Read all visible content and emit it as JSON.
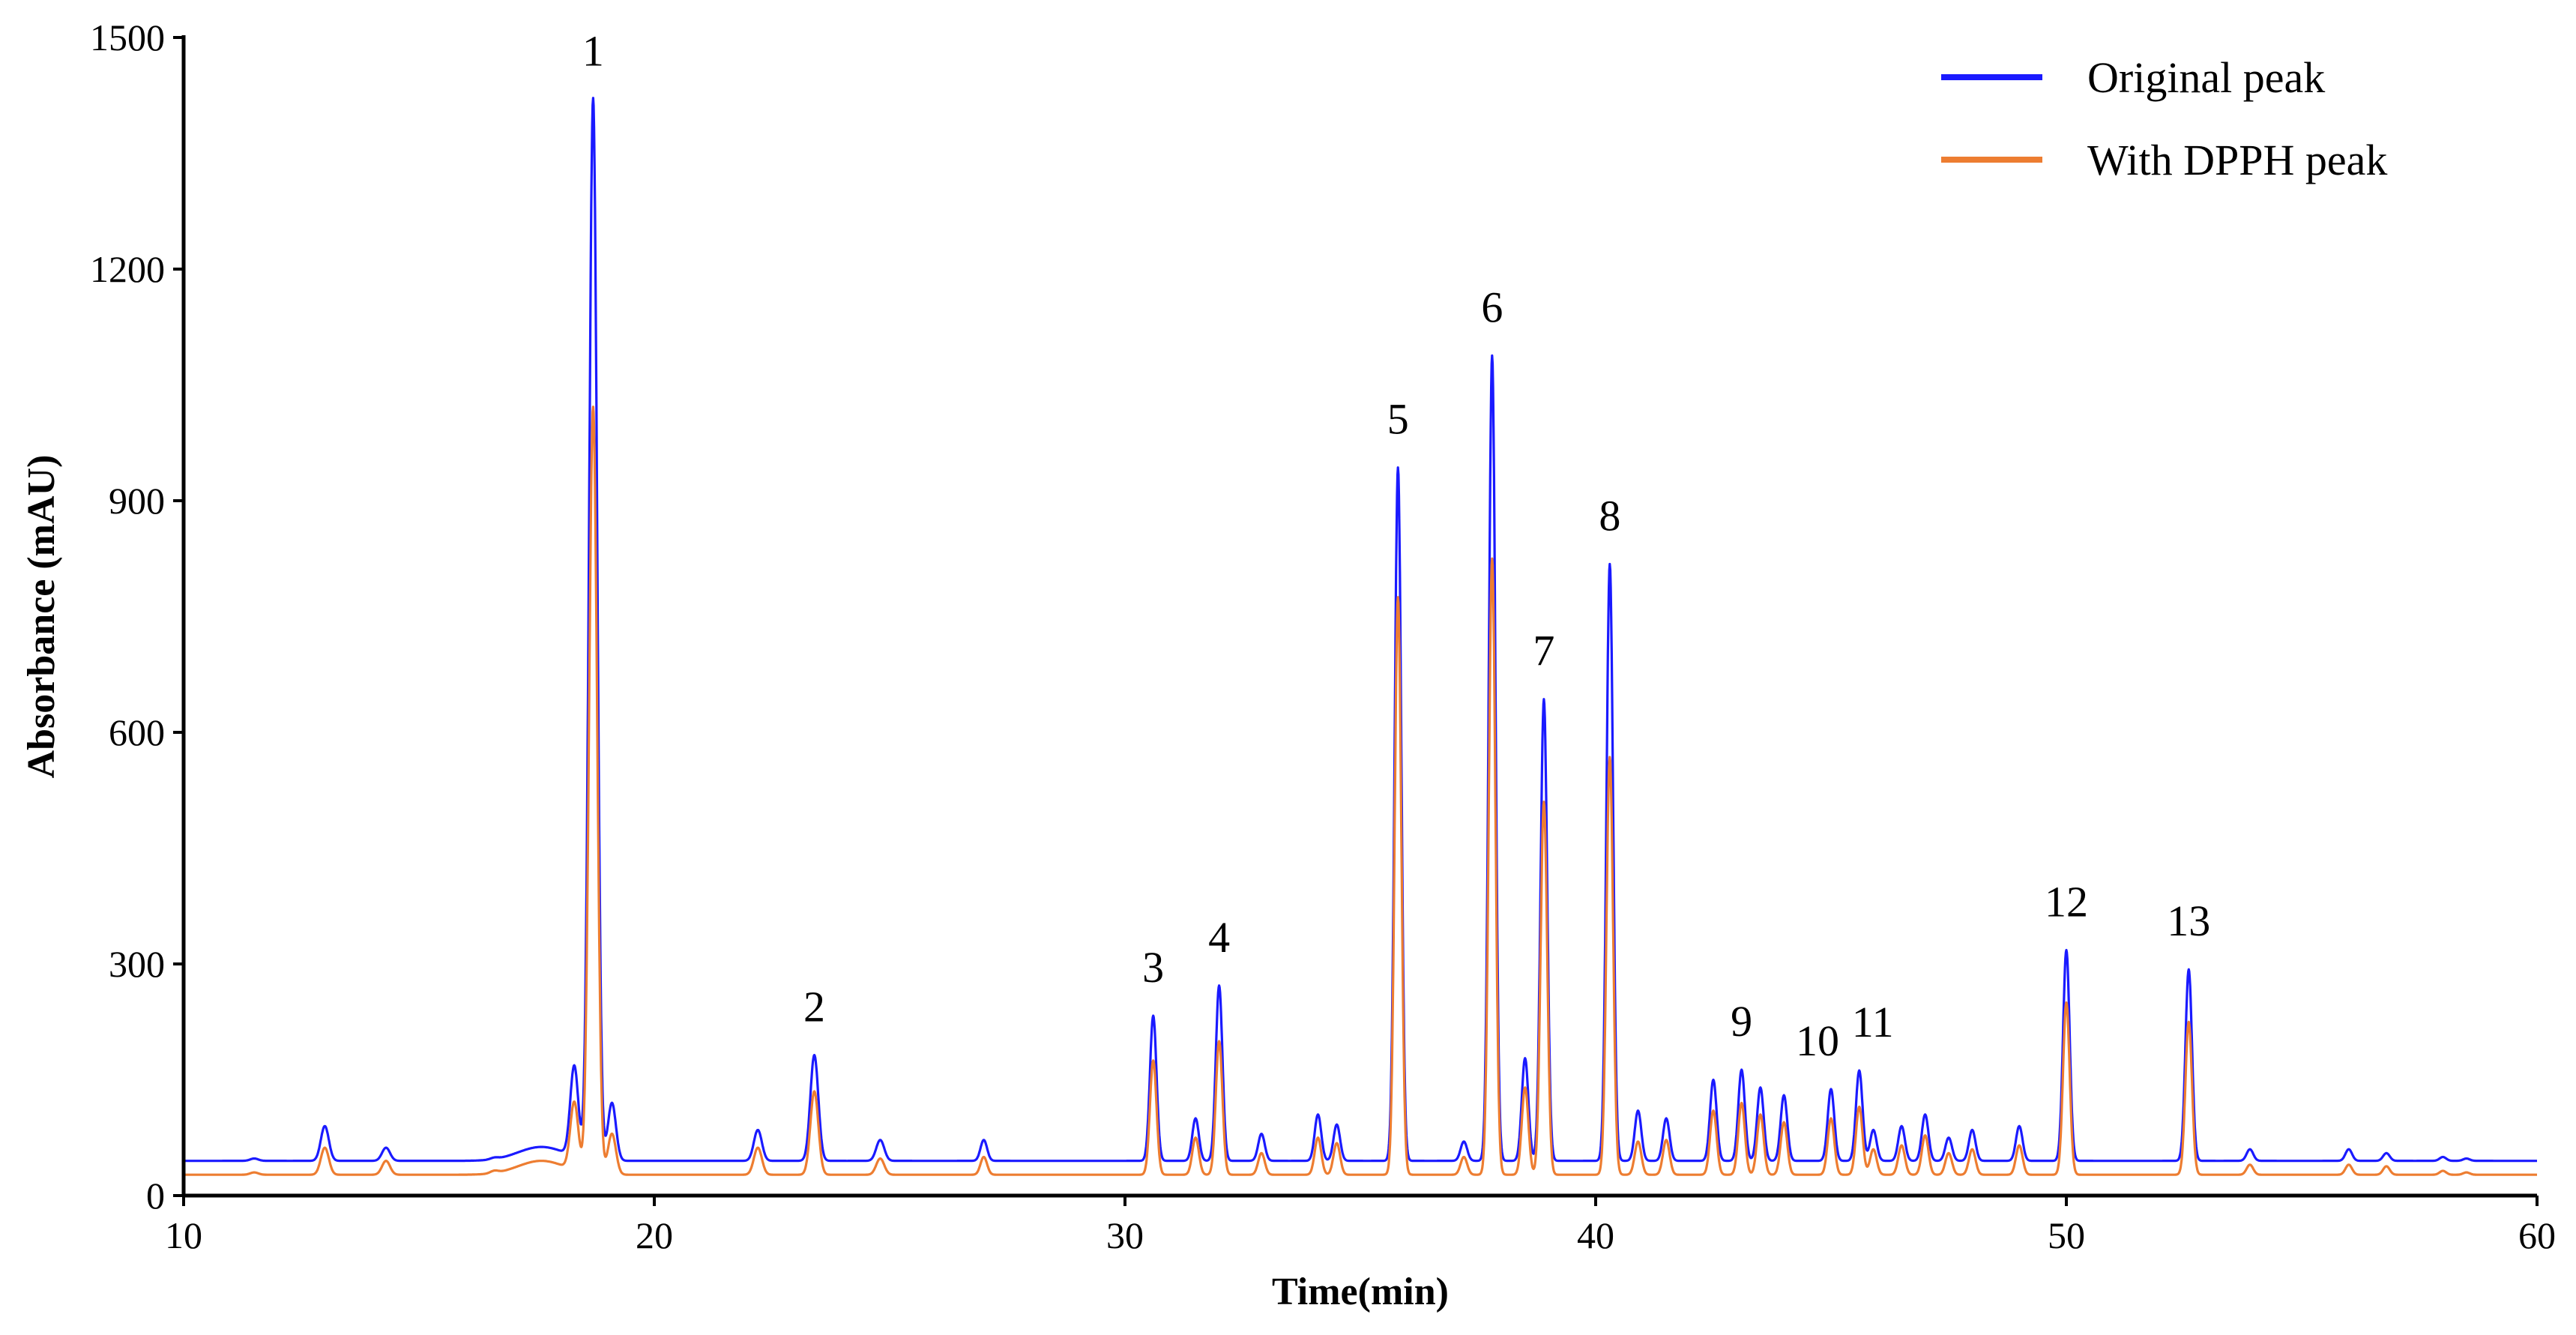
{
  "chart_data": {
    "type": "line",
    "xlabel": "Time(min)",
    "ylabel": "Absorbance (mAU)",
    "xlim": [
      10,
      60
    ],
    "ylim": [
      0,
      1500
    ],
    "x_ticks": [
      10,
      20,
      30,
      40,
      50,
      60
    ],
    "y_ticks": [
      0,
      300,
      600,
      900,
      1200,
      1500
    ],
    "legend": {
      "position": "top-right",
      "entries": [
        {
          "name": "Original peak",
          "color": "#1a1aff"
        },
        {
          "name": "With DPPH peak",
          "color": "#ed7d31"
        }
      ]
    },
    "baselines": {
      "Original peak": 45,
      "With DPPH peak": 27
    },
    "peaks": [
      {
        "label": "1",
        "time": 18.7,
        "original": 1420,
        "dpph": 1020
      },
      {
        "label": "2",
        "time": 23.4,
        "original": 182,
        "dpph": 135
      },
      {
        "label": "3",
        "time": 30.6,
        "original": 233,
        "dpph": 175
      },
      {
        "label": "4",
        "time": 32.0,
        "original": 272,
        "dpph": 200
      },
      {
        "label": "5",
        "time": 35.8,
        "original": 943,
        "dpph": 775
      },
      {
        "label": "6",
        "time": 37.8,
        "original": 1088,
        "dpph": 825
      },
      {
        "label": "7",
        "time": 38.9,
        "original": 643,
        "dpph": 510
      },
      {
        "label": "8",
        "time": 40.3,
        "original": 818,
        "dpph": 568
      },
      {
        "label": "9",
        "time": 43.1,
        "original": 163,
        "dpph": 120
      },
      {
        "label": "10",
        "time": 45.0,
        "original": 138,
        "dpph": 100
      },
      {
        "label": "11",
        "time": 45.6,
        "original": 162,
        "dpph": 115
      },
      {
        "label": "12",
        "time": 50.0,
        "original": 318,
        "dpph": 250
      },
      {
        "label": "13",
        "time": 52.6,
        "original": 293,
        "dpph": 225
      }
    ],
    "minor_peaks": [
      {
        "time": 11.5,
        "original": 48,
        "dpph": 30
      },
      {
        "time": 13.0,
        "original": 90,
        "dpph": 62
      },
      {
        "time": 14.3,
        "original": 62,
        "dpph": 45
      },
      {
        "time": 16.6,
        "original": 47,
        "dpph": 30
      },
      {
        "time": 18.3,
        "original": 162,
        "dpph": 115
      },
      {
        "time": 19.1,
        "original": 120,
        "dpph": 80
      },
      {
        "time": 22.2,
        "original": 85,
        "dpph": 62
      },
      {
        "time": 24.8,
        "original": 72,
        "dpph": 48
      },
      {
        "time": 27.0,
        "original": 72,
        "dpph": 50
      },
      {
        "time": 31.5,
        "original": 100,
        "dpph": 75
      },
      {
        "time": 32.9,
        "original": 80,
        "dpph": 55
      },
      {
        "time": 34.1,
        "original": 105,
        "dpph": 75
      },
      {
        "time": 34.5,
        "original": 92,
        "dpph": 68
      },
      {
        "time": 37.2,
        "original": 70,
        "dpph": 50
      },
      {
        "time": 38.5,
        "original": 178,
        "dpph": 140
      },
      {
        "time": 40.9,
        "original": 110,
        "dpph": 70
      },
      {
        "time": 41.5,
        "original": 100,
        "dpph": 72
      },
      {
        "time": 42.5,
        "original": 150,
        "dpph": 110
      },
      {
        "time": 43.5,
        "original": 140,
        "dpph": 105
      },
      {
        "time": 44.0,
        "original": 130,
        "dpph": 95
      },
      {
        "time": 45.9,
        "original": 85,
        "dpph": 60
      },
      {
        "time": 46.5,
        "original": 90,
        "dpph": 65
      },
      {
        "time": 47.0,
        "original": 105,
        "dpph": 78
      },
      {
        "time": 47.5,
        "original": 75,
        "dpph": 55
      },
      {
        "time": 48.0,
        "original": 85,
        "dpph": 60
      },
      {
        "time": 49.0,
        "original": 90,
        "dpph": 65
      },
      {
        "time": 53.9,
        "original": 60,
        "dpph": 40
      },
      {
        "time": 56.0,
        "original": 60,
        "dpph": 40
      },
      {
        "time": 56.8,
        "original": 55,
        "dpph": 38
      },
      {
        "time": 58.0,
        "original": 50,
        "dpph": 32
      },
      {
        "time": 58.5,
        "original": 48,
        "dpph": 30
      }
    ]
  }
}
